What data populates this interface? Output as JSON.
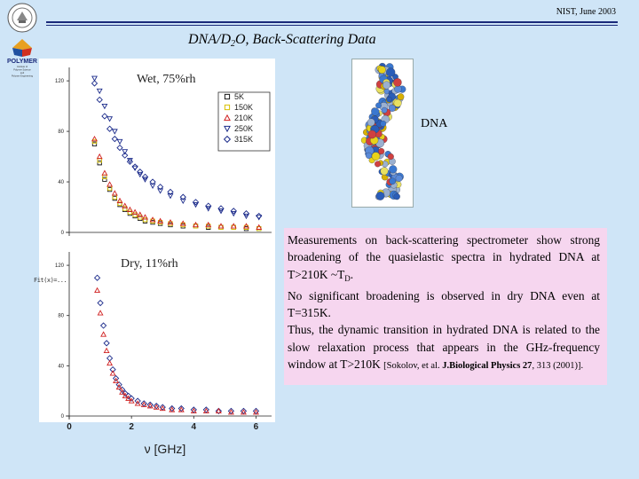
{
  "header": {
    "right_text": "NIST, June 2003",
    "logo_seal_icon": "university-seal-icon",
    "logo_polymer_label": "POLYMER",
    "logo_polymer_small": [
      "Institute of",
      "Polymer Science",
      "and",
      "Polymer Engineering"
    ]
  },
  "title": {
    "prefix": "DNA/D",
    "subscript": "2",
    "suffix": "O,  Back-Scattering Data"
  },
  "dna_image": {
    "label": "DNA"
  },
  "text": {
    "p1_main": "Measurements on back-scattering spectrometer show strong broadening of the quasielastic spectra in hydrated DNA at T>210K ~T",
    "p1_sub": "D",
    "p1_end": ".",
    "p2": "No significant broadening is observed in dry DNA even at T=315K.",
    "p3": "Thus, the dynamic transition in hydrated DNA is related to the slow relaxation process that appears in the GHz-frequency window at T>210K ",
    "ref_pre": "[Sokolov, et al. ",
    "ref_bold": "J.Biological Physics 27",
    "ref_post": ", 313 (2001)]."
  },
  "stray_text": "Fit(x)=...",
  "chart_data": [
    {
      "type": "scatter",
      "title": "Wet, 75%rh",
      "xlabel": "",
      "ylabel": "",
      "xlim": [
        0,
        8
      ],
      "ylim": [
        0,
        125
      ],
      "yticks": [
        0,
        40,
        80,
        120
      ],
      "legend_placement": "top-right",
      "series": [
        {
          "name": "5K",
          "marker": "square",
          "color": "#1a1a1a",
          "x": [
            1.0,
            1.2,
            1.4,
            1.6,
            1.8,
            2.0,
            2.2,
            2.4,
            2.6,
            2.8,
            3.0,
            3.3,
            3.6,
            4.0,
            4.5,
            5.0,
            5.5,
            6.0,
            6.5,
            7.0,
            7.5
          ],
          "y": [
            70,
            55,
            42,
            34,
            27,
            22,
            18,
            15,
            13,
            11,
            9,
            8,
            7,
            6,
            5,
            5,
            4,
            4,
            4,
            3,
            3
          ]
        },
        {
          "name": "150K",
          "marker": "square",
          "color": "#d8c000",
          "x": [
            1.0,
            1.2,
            1.4,
            1.6,
            1.8,
            2.0,
            2.2,
            2.4,
            2.6,
            2.8,
            3.0,
            3.3,
            3.6,
            4.0,
            4.5,
            5.0,
            5.5,
            6.0,
            6.5,
            7.0,
            7.5
          ],
          "y": [
            72,
            57,
            44,
            35,
            28,
            23,
            19,
            16,
            14,
            12,
            10,
            9,
            8,
            7,
            6,
            5,
            5,
            4,
            4,
            4,
            3
          ]
        },
        {
          "name": "210K",
          "marker": "triangle-up",
          "color": "#d02020",
          "x": [
            1.0,
            1.2,
            1.4,
            1.6,
            1.8,
            2.0,
            2.2,
            2.4,
            2.6,
            2.8,
            3.0,
            3.3,
            3.6,
            4.0,
            4.5,
            5.0,
            5.5,
            6.0,
            6.5,
            7.0,
            7.5
          ],
          "y": [
            74,
            60,
            47,
            38,
            31,
            25,
            21,
            18,
            16,
            14,
            12,
            10,
            9,
            8,
            7,
            6,
            6,
            5,
            5,
            5,
            4
          ]
        },
        {
          "name": "250K",
          "marker": "triangle-down",
          "color": "#1a2a8a",
          "x": [
            1.0,
            1.2,
            1.4,
            1.6,
            1.8,
            2.0,
            2.2,
            2.4,
            2.6,
            2.8,
            3.0,
            3.3,
            3.6,
            4.0,
            4.5,
            5.0,
            5.5,
            6.0,
            6.5,
            7.0,
            7.5
          ],
          "y": [
            122,
            112,
            100,
            90,
            80,
            72,
            64,
            57,
            51,
            46,
            42,
            37,
            33,
            29,
            25,
            22,
            19,
            17,
            15,
            13,
            12
          ]
        },
        {
          "name": "315K",
          "marker": "diamond",
          "color": "#1a2a8a",
          "x": [
            1.0,
            1.2,
            1.4,
            1.6,
            1.8,
            2.0,
            2.2,
            2.4,
            2.6,
            2.8,
            3.0,
            3.3,
            3.6,
            4.0,
            4.5,
            5.0,
            5.5,
            6.0,
            6.5,
            7.0,
            7.5
          ],
          "y": [
            118,
            105,
            92,
            82,
            74,
            67,
            61,
            56,
            52,
            48,
            44,
            40,
            36,
            32,
            28,
            24,
            21,
            19,
            17,
            15,
            13
          ]
        }
      ]
    },
    {
      "type": "scatter",
      "title": "Dry, 11%rh",
      "xlabel": "ν [GHz]",
      "ylabel": "",
      "xlim": [
        0,
        6.5
      ],
      "ylim": [
        0,
        125
      ],
      "xticks": [
        0,
        2,
        4,
        6
      ],
      "yticks": [
        0,
        40,
        80,
        120
      ],
      "series": [
        {
          "name": "315K",
          "marker": "diamond",
          "color": "#1a2a8a",
          "x": [
            0.9,
            1.0,
            1.1,
            1.2,
            1.3,
            1.4,
            1.5,
            1.6,
            1.7,
            1.8,
            1.9,
            2.0,
            2.2,
            2.4,
            2.6,
            2.8,
            3.0,
            3.3,
            3.6,
            4.0,
            4.4,
            4.8,
            5.2,
            5.6,
            6.0
          ],
          "y": [
            110,
            90,
            72,
            58,
            46,
            37,
            30,
            25,
            21,
            18,
            16,
            14,
            12,
            10,
            9,
            8,
            7,
            6,
            6,
            5,
            5,
            4,
            4,
            4,
            4
          ]
        },
        {
          "name": "210K",
          "marker": "triangle-up",
          "color": "#d02020",
          "x": [
            0.9,
            1.0,
            1.1,
            1.2,
            1.3,
            1.4,
            1.5,
            1.6,
            1.7,
            1.8,
            1.9,
            2.0,
            2.2,
            2.4,
            2.6,
            2.8,
            3.0,
            3.3,
            3.6,
            4.0,
            4.4,
            4.8,
            5.2,
            5.6,
            6.0
          ],
          "y": [
            100,
            82,
            65,
            52,
            42,
            34,
            28,
            23,
            19,
            16,
            14,
            12,
            10,
            9,
            8,
            7,
            6,
            5,
            5,
            4,
            4,
            4,
            3,
            3,
            3
          ]
        }
      ]
    }
  ],
  "colors": {
    "background": "#cfe5f7",
    "text_box": "#f6d6ef",
    "header_rule": "#1a2a7a"
  }
}
